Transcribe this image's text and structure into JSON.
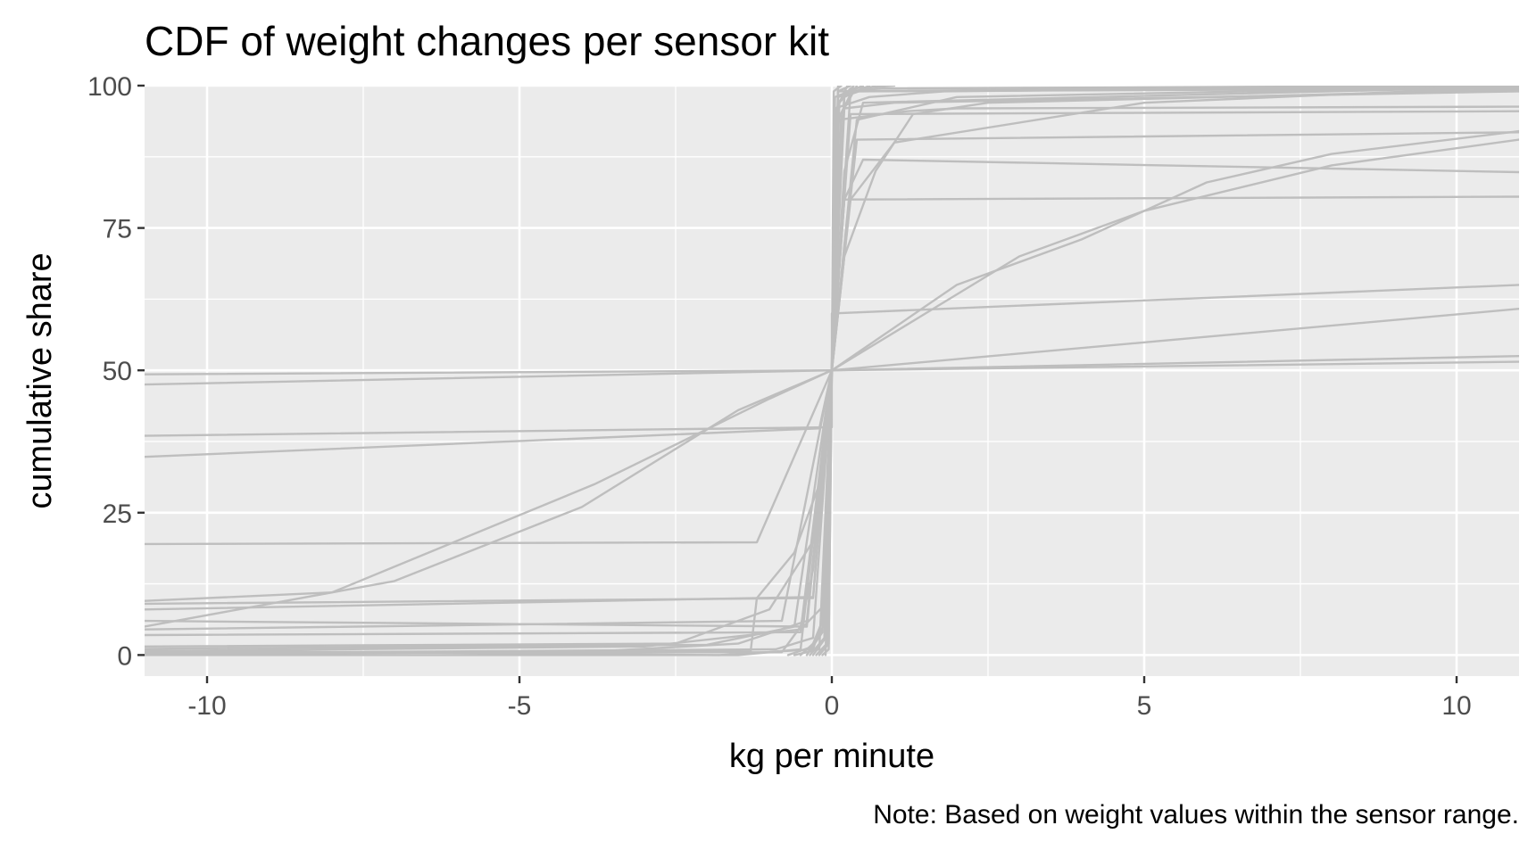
{
  "chart_data": {
    "type": "line",
    "title": "CDF of weight changes per sensor kit",
    "xlabel": "kg per minute",
    "ylabel": "cumulative share",
    "caption": "Note: Based on weight values within the sensor range.",
    "xlim": [
      -11,
      11
    ],
    "ylim": [
      -3.7,
      100
    ],
    "x_ticks": [
      -10,
      -5,
      0,
      5,
      10
    ],
    "x_tick_labels": [
      "-10",
      "-5",
      "0",
      "5",
      "10"
    ],
    "y_ticks": [
      0,
      25,
      50,
      75,
      100
    ],
    "y_tick_labels": [
      "0",
      "25",
      "50",
      "75",
      "100"
    ],
    "grid": true,
    "legend": "none",
    "colors": {
      "panel": "#ebebeb",
      "grid": "#ffffff",
      "line": "#bebebe"
    },
    "series": [
      {
        "points": [
          [
            -11,
            47.5
          ],
          [
            0,
            50
          ],
          [
            11,
            51.5
          ]
        ]
      },
      {
        "points": [
          [
            -11,
            49.3
          ],
          [
            0,
            50
          ],
          [
            11,
            52.5
          ]
        ]
      },
      {
        "points": [
          [
            -11,
            38.5
          ],
          [
            0,
            40
          ],
          [
            0,
            60
          ],
          [
            11,
            65
          ]
        ]
      },
      {
        "points": [
          [
            -11,
            34.8
          ],
          [
            -0.2,
            39.8
          ],
          [
            0,
            50
          ],
          [
            11,
            60.8
          ]
        ]
      },
      {
        "points": [
          [
            -11,
            19.5
          ],
          [
            -1.2,
            19.8
          ],
          [
            0,
            50
          ],
          [
            0.2,
            80
          ],
          [
            11,
            80.5
          ]
        ]
      },
      {
        "points": [
          [
            -11,
            9.5
          ],
          [
            -8,
            11
          ],
          [
            -3.8,
            30
          ],
          [
            -1,
            45
          ],
          [
            0,
            50
          ],
          [
            2,
            65
          ],
          [
            4,
            73
          ],
          [
            6,
            83
          ],
          [
            8,
            88
          ],
          [
            11,
            92
          ]
        ]
      },
      {
        "points": [
          [
            -11,
            5
          ],
          [
            -7,
            13
          ],
          [
            -4,
            26
          ],
          [
            -1.5,
            43
          ],
          [
            0,
            50
          ],
          [
            1.5,
            60
          ],
          [
            3,
            70
          ],
          [
            5,
            78
          ],
          [
            8,
            86
          ],
          [
            11,
            90.5
          ]
        ]
      },
      {
        "points": [
          [
            -11,
            9
          ],
          [
            -0.3,
            10
          ],
          [
            0,
            50
          ],
          [
            0.4,
            90.5
          ],
          [
            11,
            91.8
          ]
        ]
      },
      {
        "points": [
          [
            -11,
            8
          ],
          [
            -0.3,
            10.2
          ],
          [
            0,
            50
          ],
          [
            0.2,
            80
          ],
          [
            0.5,
            87
          ],
          [
            11,
            84.8
          ]
        ]
      },
      {
        "points": [
          [
            -11,
            4.5
          ],
          [
            -0.8,
            6
          ],
          [
            0,
            50
          ],
          [
            0.3,
            95
          ],
          [
            11,
            95.5
          ]
        ]
      },
      {
        "points": [
          [
            -11,
            6
          ],
          [
            -0.4,
            5
          ],
          [
            0,
            50
          ],
          [
            0.2,
            96
          ],
          [
            1,
            97
          ],
          [
            11,
            99
          ]
        ]
      },
      {
        "points": [
          [
            -11,
            0.7
          ],
          [
            -3,
            1.5
          ],
          [
            -0.5,
            4.5
          ],
          [
            -0.1,
            9
          ],
          [
            0,
            50
          ],
          [
            0.1,
            94
          ],
          [
            1.2,
            95.5
          ],
          [
            2,
            96
          ],
          [
            11,
            96.3
          ]
        ]
      },
      {
        "points": [
          [
            -11,
            1.1
          ],
          [
            -2,
            1.8
          ],
          [
            -0.6,
            5
          ],
          [
            0,
            50
          ],
          [
            0.3,
            99
          ],
          [
            11,
            99.6
          ]
        ]
      },
      {
        "points": [
          [
            -11,
            0.5
          ],
          [
            -1.3,
            0.6
          ],
          [
            -1.2,
            10
          ],
          [
            -0.6,
            18
          ],
          [
            -0.2,
            30
          ],
          [
            0,
            50
          ],
          [
            0.2,
            70
          ],
          [
            0.7,
            85
          ],
          [
            1.3,
            95
          ],
          [
            2.5,
            97
          ],
          [
            11,
            99.3
          ]
        ]
      },
      {
        "points": [
          [
            -11,
            1.5
          ],
          [
            -2.5,
            2
          ],
          [
            -1,
            8
          ],
          [
            -0.3,
            20
          ],
          [
            0,
            50
          ],
          [
            0.3,
            80
          ],
          [
            1,
            90
          ],
          [
            5,
            97
          ],
          [
            11,
            99.8
          ]
        ]
      },
      {
        "points": [
          [
            -11,
            0.2
          ],
          [
            -4,
            0.5
          ],
          [
            -1.5,
            2
          ],
          [
            -0.4,
            6
          ],
          [
            0,
            50
          ],
          [
            0.4,
            94
          ],
          [
            2,
            98
          ],
          [
            11,
            99.9
          ]
        ]
      },
      {
        "points": [
          [
            -11,
            3.5
          ],
          [
            -0.5,
            4
          ],
          [
            0,
            50
          ],
          [
            0.1,
            98
          ],
          [
            0.4,
            99
          ],
          [
            11,
            99.5
          ]
        ]
      },
      {
        "points": [
          [
            -11,
            0.4
          ],
          [
            -0.8,
            0.5
          ],
          [
            -0.5,
            5
          ],
          [
            -0.3,
            15
          ],
          [
            0,
            50
          ],
          [
            0.2,
            85
          ],
          [
            0.5,
            97
          ],
          [
            11,
            99.8
          ]
        ]
      },
      {
        "points": [
          [
            -11,
            0.8
          ],
          [
            -1.8,
            0
          ],
          [
            -0.3,
            1
          ],
          [
            -0.1,
            8
          ],
          [
            0,
            50
          ],
          [
            0.05,
            96
          ],
          [
            0.6,
            98
          ],
          [
            1.8,
            99
          ],
          [
            11,
            100
          ]
        ]
      },
      {
        "points": [
          [
            -11,
            0.3
          ],
          [
            -0.9,
            1
          ],
          [
            -0.3,
            3
          ],
          [
            0,
            50
          ],
          [
            0.2,
            99
          ],
          [
            0.8,
            99.5
          ],
          [
            11,
            100
          ]
        ]
      },
      {
        "points": [
          [
            -11,
            0
          ],
          [
            -1.5,
            0
          ],
          [
            -0.5,
            1
          ],
          [
            0,
            50
          ],
          [
            0.1,
            99
          ],
          [
            11,
            100
          ]
        ]
      },
      {
        "points": [
          [
            -0.5,
            0
          ],
          [
            -0.3,
            2
          ],
          [
            -0.15,
            6
          ],
          [
            0,
            50
          ],
          [
            0.1,
            97
          ],
          [
            0.3,
            99.5
          ],
          [
            1,
            100
          ]
        ]
      },
      {
        "points": [
          [
            -0.3,
            0
          ],
          [
            -0.1,
            3
          ],
          [
            0,
            50
          ],
          [
            0.05,
            98
          ],
          [
            0.5,
            100
          ]
        ]
      },
      {
        "points": [
          [
            -0.2,
            0
          ],
          [
            -0.05,
            2
          ],
          [
            0,
            50
          ],
          [
            0.1,
            99
          ],
          [
            0.3,
            100
          ]
        ]
      },
      {
        "points": [
          [
            -0.6,
            0
          ],
          [
            -0.2,
            1
          ],
          [
            0,
            50
          ],
          [
            0.2,
            98
          ],
          [
            0.6,
            100
          ]
        ]
      },
      {
        "points": [
          [
            -0.4,
            0
          ],
          [
            -0.15,
            4
          ],
          [
            0,
            50
          ],
          [
            0.15,
            95
          ],
          [
            0.4,
            100
          ]
        ]
      },
      {
        "points": [
          [
            -0.25,
            0
          ],
          [
            -0.08,
            2
          ],
          [
            0,
            50
          ],
          [
            0.08,
            96
          ],
          [
            0.25,
            100
          ]
        ]
      },
      {
        "points": [
          [
            -0.1,
            0
          ],
          [
            0,
            50
          ],
          [
            0.1,
            100
          ]
        ]
      },
      {
        "points": [
          [
            -0.7,
            0
          ],
          [
            -0.3,
            1.5
          ],
          [
            -0.05,
            7
          ],
          [
            0,
            50
          ],
          [
            0.05,
            93
          ],
          [
            0.3,
            98.5
          ],
          [
            0.7,
            100
          ]
        ]
      },
      {
        "points": [
          [
            -0.15,
            0
          ],
          [
            -0.05,
            1
          ],
          [
            0,
            50
          ],
          [
            0.03,
            99
          ],
          [
            0.15,
            100
          ]
        ]
      },
      {
        "points": [
          [
            -0.35,
            0
          ],
          [
            -0.12,
            3
          ],
          [
            0,
            50
          ],
          [
            0.12,
            97
          ],
          [
            0.35,
            100
          ]
        ]
      }
    ]
  }
}
